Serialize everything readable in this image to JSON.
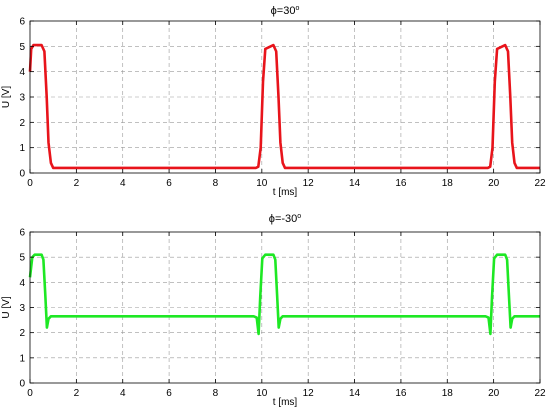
{
  "chart_data": [
    {
      "type": "line",
      "title_prefix": "ϕ=30",
      "title_sup": "o",
      "xlabel": "t [ms]",
      "ylabel": "U [V]",
      "xlim": [
        0,
        22
      ],
      "ylim": [
        0,
        6
      ],
      "xticks": [
        "0",
        "2",
        "4",
        "6",
        "8",
        "10",
        "12",
        "14",
        "16",
        "18",
        "20",
        "22"
      ],
      "yticks": [
        "0",
        "1",
        "2",
        "3",
        "4",
        "5",
        "6"
      ],
      "grid": true,
      "color": "#e8141b",
      "series": [
        {
          "x": [
            0,
            0.05,
            0.15,
            0.5,
            0.62,
            0.72,
            0.8,
            0.9,
            1.0,
            9.75,
            9.85,
            9.95,
            10.05,
            10.15,
            10.5,
            10.62,
            10.72,
            10.8,
            10.9,
            11.0,
            19.75,
            19.85,
            19.95,
            20.05,
            20.15,
            20.5,
            20.62,
            20.72,
            20.8,
            20.9,
            21.0,
            22
          ],
          "y": [
            4.0,
            4.9,
            5.05,
            5.05,
            4.8,
            3.0,
            1.2,
            0.4,
            0.2,
            0.2,
            0.25,
            1.0,
            3.6,
            4.9,
            5.05,
            4.8,
            3.0,
            1.2,
            0.4,
            0.2,
            0.2,
            0.25,
            1.0,
            3.6,
            4.9,
            5.05,
            4.8,
            3.0,
            1.2,
            0.4,
            0.2,
            0.2
          ]
        }
      ]
    },
    {
      "type": "line",
      "title_prefix": "ϕ=-30",
      "title_sup": "o",
      "xlabel": "t [ms]",
      "ylabel": "U [V]",
      "xlim": [
        0,
        22
      ],
      "ylim": [
        0,
        6
      ],
      "xticks": [
        "0",
        "2",
        "4",
        "6",
        "8",
        "10",
        "12",
        "14",
        "16",
        "18",
        "20",
        "22"
      ],
      "yticks": [
        "0",
        "1",
        "2",
        "3",
        "4",
        "5",
        "6"
      ],
      "grid": true,
      "color": "#1ee824",
      "series": [
        {
          "x": [
            0,
            0.1,
            0.2,
            0.5,
            0.58,
            0.66,
            0.73,
            0.8,
            0.9,
            1.0,
            9.65,
            9.78,
            9.86,
            9.93,
            10.02,
            10.15,
            10.5,
            10.58,
            10.66,
            10.73,
            10.8,
            10.9,
            11.0,
            19.65,
            19.78,
            19.86,
            19.93,
            20.02,
            20.15,
            20.5,
            20.58,
            20.66,
            20.73,
            20.8,
            20.9,
            21.0,
            22
          ],
          "y": [
            4.2,
            5.0,
            5.1,
            5.1,
            4.9,
            3.5,
            2.2,
            2.55,
            2.65,
            2.65,
            2.65,
            2.6,
            1.95,
            3.4,
            4.95,
            5.1,
            5.1,
            4.9,
            3.5,
            2.2,
            2.55,
            2.65,
            2.65,
            2.65,
            2.6,
            1.95,
            3.4,
            4.95,
            5.1,
            5.1,
            4.9,
            3.5,
            2.2,
            2.55,
            2.65,
            2.65,
            2.65
          ]
        }
      ]
    }
  ]
}
